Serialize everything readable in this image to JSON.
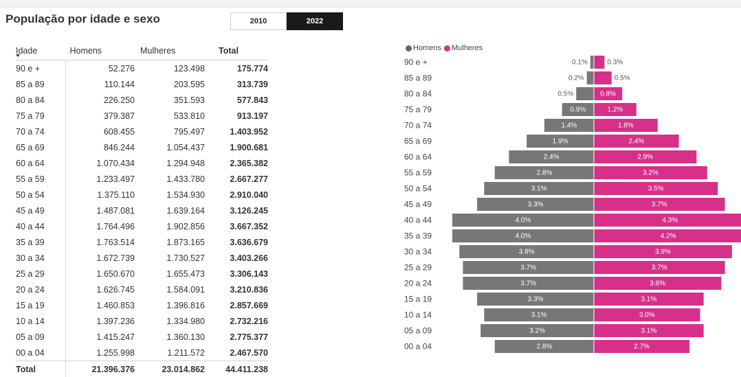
{
  "title": "População por idade e sexo",
  "years": {
    "y2010": "2010",
    "y2022": "2022",
    "selected": "2022"
  },
  "table": {
    "headers": [
      "Idade",
      "Homens",
      "Mulheres",
      "Total"
    ],
    "rows": [
      [
        "90 e +",
        "52.276",
        "123.498",
        "175.774"
      ],
      [
        "85 a 89",
        "110.144",
        "203.595",
        "313.739"
      ],
      [
        "80 a 84",
        "226.250",
        "351.593",
        "577.843"
      ],
      [
        "75 a 79",
        "379.387",
        "533.810",
        "913.197"
      ],
      [
        "70 a 74",
        "608.455",
        "795.497",
        "1.403.952"
      ],
      [
        "65 a 69",
        "846.244",
        "1.054.437",
        "1.900.681"
      ],
      [
        "60 a 64",
        "1.070.434",
        "1.294.948",
        "2.365.382"
      ],
      [
        "55 a 59",
        "1.233.497",
        "1.433.780",
        "2.667.277"
      ],
      [
        "50 a 54",
        "1.375.110",
        "1.534.930",
        "2.910.040"
      ],
      [
        "45 a 49",
        "1.487.081",
        "1.639.164",
        "3.126.245"
      ],
      [
        "40 a 44",
        "1.764.496",
        "1.902.856",
        "3.667.352"
      ],
      [
        "35 a 39",
        "1.763.514",
        "1.873.165",
        "3.636.679"
      ],
      [
        "30 a 34",
        "1.672.739",
        "1.730.527",
        "3.403.266"
      ],
      [
        "25 a 29",
        "1.650.670",
        "1.655.473",
        "3.306.143"
      ],
      [
        "20 a 24",
        "1.626.745",
        "1.584.091",
        "3.210.836"
      ],
      [
        "15 a 19",
        "1.460.853",
        "1.396.816",
        "2.857.669"
      ],
      [
        "10 a 14",
        "1.397.236",
        "1.334.980",
        "2.732.216"
      ],
      [
        "05 a 09",
        "1.415.247",
        "1.360.130",
        "2.775.377"
      ],
      [
        "00 a 04",
        "1.255.998",
        "1.211.572",
        "2.467.570"
      ]
    ],
    "total": [
      "Total",
      "21.396.376",
      "23.014.862",
      "44.411.238"
    ]
  },
  "chart_data": {
    "type": "bar",
    "orientation": "horizontal",
    "layout": "population-pyramid",
    "categories": [
      "90 e +",
      "85 a 89",
      "80 a 84",
      "75 a 79",
      "70 a 74",
      "65 a 69",
      "60 a 64",
      "55 a 59",
      "50 a 54",
      "45 a 49",
      "40 a 44",
      "35 a 39",
      "30 a 34",
      "25 a 29",
      "20 a 24",
      "15 a 19",
      "10 a 14",
      "05 a 09",
      "00 a 04"
    ],
    "series": [
      {
        "name": "Homens",
        "color": "#777777",
        "side": "left",
        "values": [
          0.1,
          0.2,
          0.5,
          0.9,
          1.4,
          1.9,
          2.4,
          2.8,
          3.1,
          3.3,
          4.0,
          4.0,
          3.8,
          3.7,
          3.7,
          3.3,
          3.1,
          3.2,
          2.8
        ],
        "labels": [
          "0.1%",
          "0.2%",
          "0.5%",
          "0.9%",
          "1.4%",
          "1.9%",
          "2.4%",
          "2.8%",
          "3.1%",
          "3.3%",
          "4.0%",
          "4.0%",
          "3.8%",
          "3.7%",
          "3.7%",
          "3.3%",
          "3.1%",
          "3.2%",
          "2.8%"
        ]
      },
      {
        "name": "Mulheres",
        "color": "#d6308a",
        "side": "right",
        "values": [
          0.3,
          0.5,
          0.8,
          1.2,
          1.8,
          2.4,
          2.9,
          3.2,
          3.5,
          3.7,
          4.3,
          4.2,
          3.9,
          3.7,
          3.6,
          3.1,
          3.0,
          3.1,
          2.7
        ],
        "labels": [
          "0.3%",
          "0.5%",
          "0.8%",
          "1.2%",
          "1.8%",
          "2.4%",
          "2.9%",
          "3.2%",
          "3.5%",
          "3.7%",
          "4.3%",
          "4.2%",
          "3.9%",
          "3.7%",
          "3.6%",
          "3.1%",
          "3.0%",
          "3.1%",
          "2.7%"
        ]
      }
    ],
    "unit": "%",
    "legend": "top-left",
    "grid": false
  }
}
